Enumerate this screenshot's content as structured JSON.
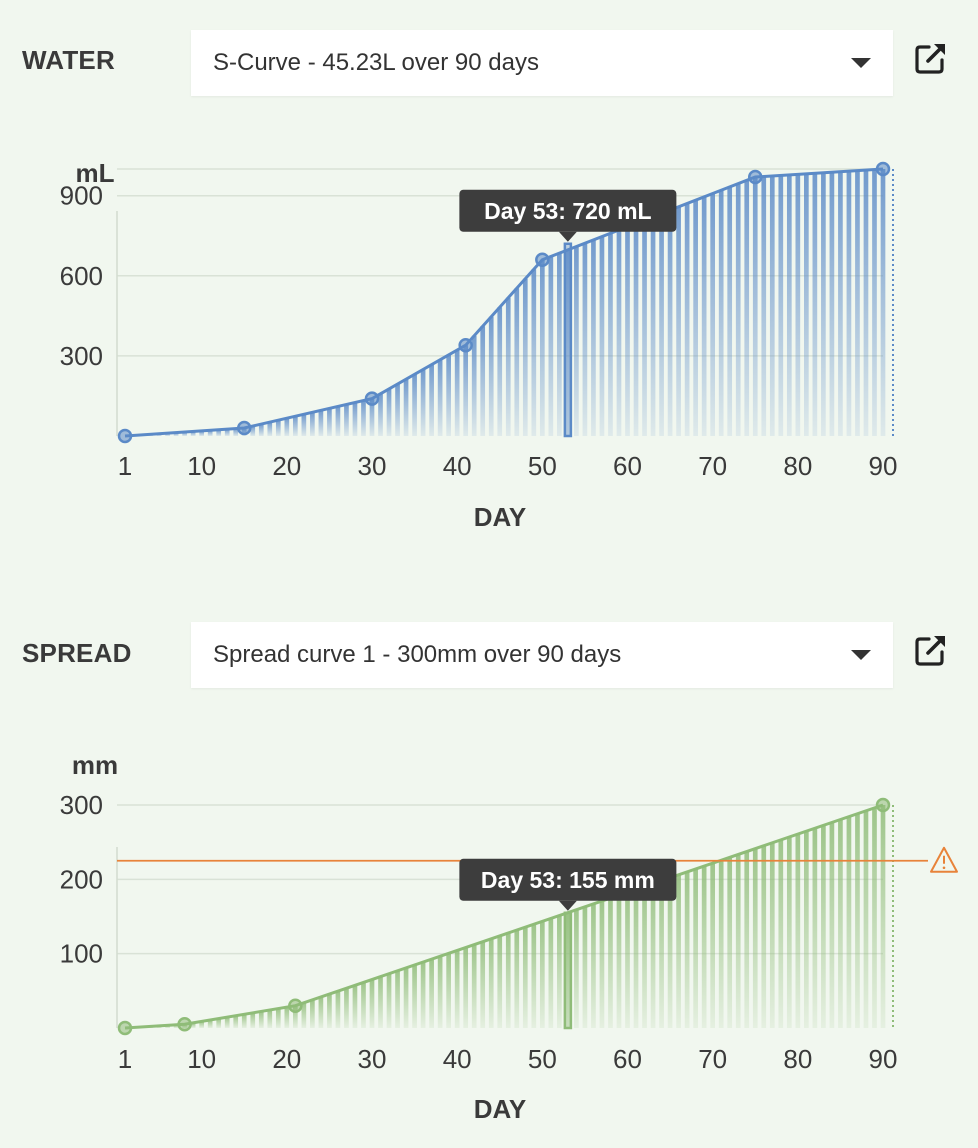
{
  "water": {
    "label": "WATER",
    "select_value": "S-Curve - 45.23L over 90 days",
    "tooltip": "Day 53: 720 mL",
    "icons": {
      "dropdown": "caret-down-icon",
      "open": "external-link-icon"
    }
  },
  "spread": {
    "label": "SPREAD",
    "select_value": "Spread curve 1 - 300mm over 90 days",
    "tooltip": "Day 53: 155 mm",
    "icons": {
      "dropdown": "caret-down-icon",
      "open": "external-link-icon",
      "warning": "warning-triangle-icon"
    }
  },
  "chart_data": [
    {
      "type": "area",
      "ylabel": "mL",
      "xlabel": "DAY",
      "color": "#5b8ac7",
      "xlim": [
        1,
        90
      ],
      "ylim": [
        0,
        1000
      ],
      "xticks": [
        1,
        10,
        20,
        30,
        40,
        50,
        60,
        70,
        80,
        90
      ],
      "yticks": [
        300,
        600,
        900
      ],
      "points": [
        [
          1,
          0
        ],
        [
          15,
          30
        ],
        [
          30,
          140
        ],
        [
          41,
          340
        ],
        [
          50,
          660
        ],
        [
          75,
          970
        ],
        [
          90,
          1000
        ]
      ],
      "highlight": {
        "x": 53,
        "y": 720
      },
      "grid": true
    },
    {
      "type": "area",
      "ylabel": "mm",
      "xlabel": "DAY",
      "color": "#8fbc78",
      "xlim": [
        1,
        90
      ],
      "ylim": [
        0,
        300
      ],
      "xticks": [
        1,
        10,
        20,
        30,
        40,
        50,
        60,
        70,
        80,
        90
      ],
      "yticks": [
        100,
        200,
        300
      ],
      "points": [
        [
          1,
          0
        ],
        [
          8,
          5
        ],
        [
          21,
          30
        ],
        [
          90,
          300
        ]
      ],
      "highlight": {
        "x": 53,
        "y": 155
      },
      "threshold": {
        "y": 225,
        "color": "#e8833a"
      },
      "grid": true
    }
  ]
}
